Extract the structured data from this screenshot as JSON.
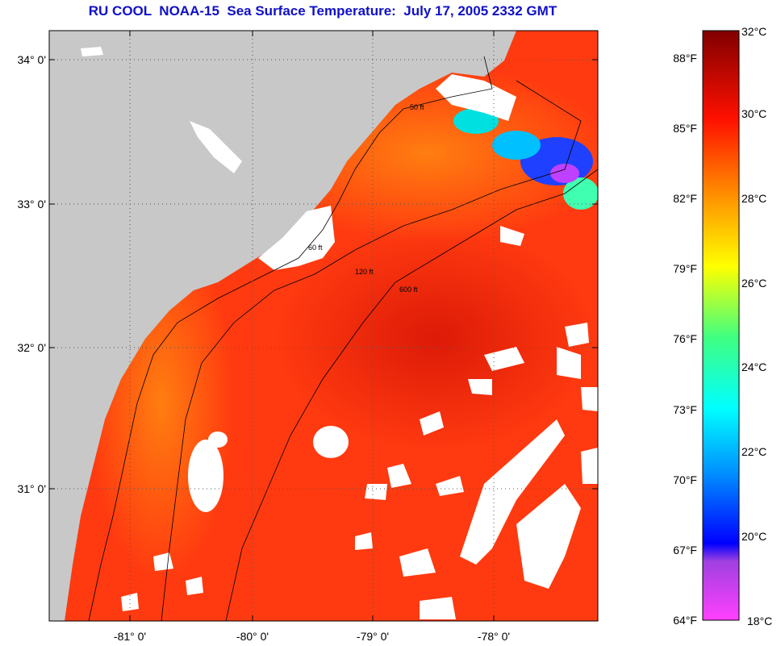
{
  "title": "RU COOL  NOAA-15  Sea Surface Temperature:  July 17, 2005 2332 GMT",
  "lat_labels": [
    "34° 0'",
    "33° 0'",
    "32° 0'",
    "31° 0'"
  ],
  "lon_labels": [
    "-81° 0'",
    "-80° 0'",
    "-79° 0'",
    "-78° 0'"
  ],
  "contour_labels": [
    "50 ft",
    "60 ft",
    "120 ft",
    "600 ft"
  ],
  "colorbar": {
    "fahrenheit": [
      "88°F",
      "85°F",
      "82°F",
      "79°F",
      "76°F",
      "73°F",
      "70°F",
      "67°F",
      "64°F"
    ],
    "celsius": [
      "32°C",
      "30°C",
      "28°C",
      "26°C",
      "24°C",
      "22°C",
      "20°C",
      "18°C"
    ]
  },
  "colors": {
    "land": "#c8c8c8",
    "cloud": "#ffffff",
    "warm_water": "#ff3010",
    "gridline": "#555555"
  }
}
